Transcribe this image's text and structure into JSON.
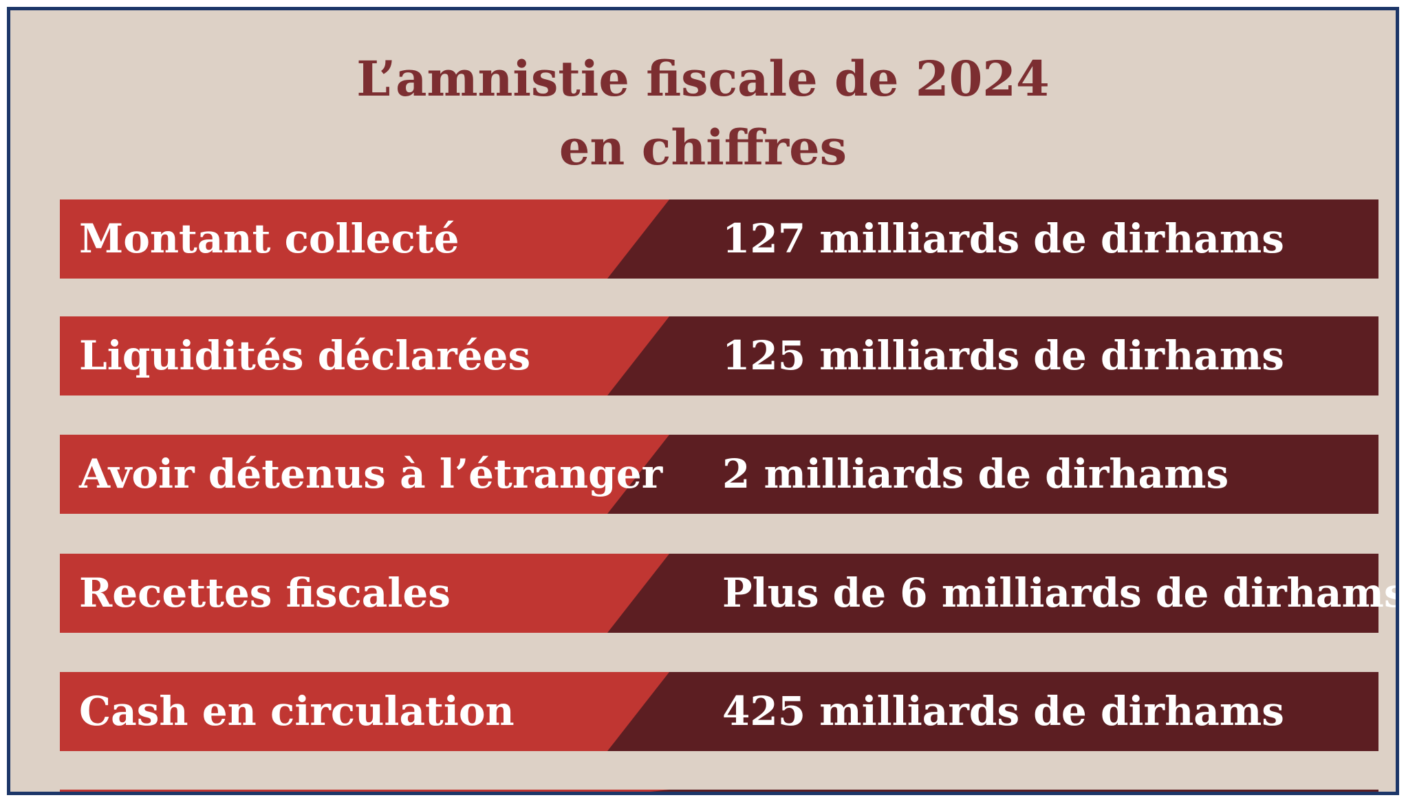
{
  "title": {
    "line1": "L’amnistie fiscale de 2024",
    "line2": "en chiffres"
  },
  "rows": [
    {
      "label": "Montant collecté",
      "value": "127 milliards de dirhams"
    },
    {
      "label": "Liquidités déclarées",
      "value": "125 milliards de dirhams"
    },
    {
      "label": "Avoir détenus à l’étranger",
      "value": "2 milliards de dirhams"
    },
    {
      "label": "Recettes fiscales",
      "value": "Plus de 6 milliards de dirhams"
    },
    {
      "label": "Cash en circulation",
      "value": "425 milliards de dirhams"
    }
  ],
  "colors": {
    "background": "#ddd1c6",
    "border": "#1c3668",
    "title": "#7c2e31",
    "label_bar": "#c03632",
    "value_bar": "#5c1e22",
    "text": "#ffffff"
  }
}
